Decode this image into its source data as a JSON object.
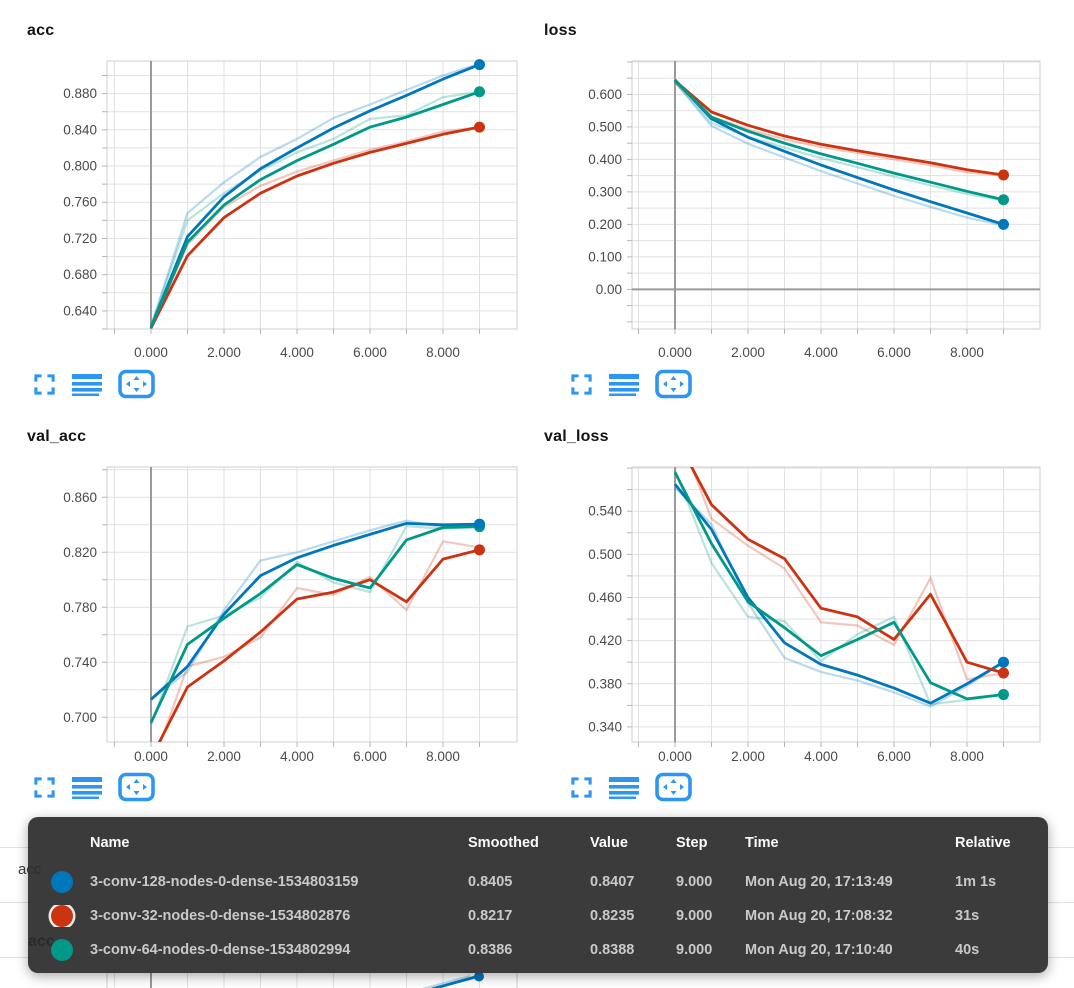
{
  "app": {
    "kind": "tensorboard-scalars-dashboard"
  },
  "colors": {
    "accent_icon_blue": "#2d96f3",
    "run_blue": "#0077bb",
    "run_red": "#cc3311",
    "run_teal": "#009988",
    "grid": "#e1e1e1",
    "plot_border": "#cfcfcf",
    "zero_axis": "#9a9a9a",
    "tick_text": "#4a4a4a",
    "tooltip_bg": "rgba(44,44,44,0.93)"
  },
  "runs": [
    {
      "name": "3-conv-128-nodes-0-dense-1534803159",
      "color": "#0077bb"
    },
    {
      "name": "3-conv-32-nodes-0-dense-1534802876",
      "color": "#cc3311"
    },
    {
      "name": "3-conv-64-nodes-0-dense-1534802994",
      "color": "#009988"
    }
  ],
  "toolbar_icons": [
    {
      "name": "expand-chart-icon"
    },
    {
      "name": "log-scale-icon"
    },
    {
      "name": "fit-domain-to-data-icon"
    }
  ],
  "chart_data": [
    {
      "type": "line",
      "title": "acc",
      "x": [
        0,
        1,
        2,
        3,
        4,
        5,
        6,
        7,
        8,
        9
      ],
      "xticks": [
        0,
        2,
        4,
        6,
        8
      ],
      "xtick_labels": [
        "0.000",
        "2.000",
        "4.000",
        "6.000",
        "8.000"
      ],
      "ylim": [
        0.62,
        0.916
      ],
      "yticks": [
        0.64,
        0.68,
        0.72,
        0.76,
        0.8,
        0.84,
        0.88
      ],
      "ytick_labels": [
        "0.640",
        "0.680",
        "0.720",
        "0.760",
        "0.800",
        "0.840",
        "0.880"
      ],
      "y_minor_step": 0.02,
      "grid": true,
      "legend": "none",
      "series": [
        {
          "run": 0,
          "smoothed": [
            0.622,
            0.722,
            0.766,
            0.797,
            0.82,
            0.842,
            0.861,
            0.878,
            0.896,
            0.912
          ],
          "raw": [
            0.623,
            0.748,
            0.782,
            0.81,
            0.83,
            0.853,
            0.868,
            0.884,
            0.9,
            0.913
          ]
        },
        {
          "run": 1,
          "smoothed": [
            0.621,
            0.701,
            0.743,
            0.77,
            0.789,
            0.803,
            0.815,
            0.825,
            0.835,
            0.843
          ],
          "raw": [
            0.622,
            0.713,
            0.755,
            0.778,
            0.794,
            0.806,
            0.818,
            0.827,
            0.838,
            0.843
          ]
        },
        {
          "run": 2,
          "smoothed": [
            0.622,
            0.716,
            0.757,
            0.785,
            0.806,
            0.824,
            0.843,
            0.854,
            0.868,
            0.882
          ],
          "raw": [
            0.623,
            0.74,
            0.77,
            0.795,
            0.815,
            0.83,
            0.852,
            0.856,
            0.876,
            0.882
          ]
        }
      ]
    },
    {
      "type": "line",
      "title": "loss",
      "x": [
        0,
        1,
        2,
        3,
        4,
        5,
        6,
        7,
        8,
        9
      ],
      "xticks": [
        0,
        2,
        4,
        6,
        8
      ],
      "xtick_labels": [
        "0.000",
        "2.000",
        "4.000",
        "6.000",
        "8.000"
      ],
      "ylim": [
        -0.122,
        0.703
      ],
      "yticks": [
        0.0,
        0.1,
        0.2,
        0.3,
        0.4,
        0.5,
        0.6
      ],
      "ytick_labels": [
        "0.00",
        "0.100",
        "0.200",
        "0.300",
        "0.400",
        "0.500",
        "0.600"
      ],
      "y_minor_step": 0.05,
      "grid": true,
      "legend": "none",
      "series": [
        {
          "run": 0,
          "smoothed": [
            0.645,
            0.525,
            0.468,
            0.425,
            0.383,
            0.344,
            0.306,
            0.27,
            0.235,
            0.2
          ],
          "raw": [
            0.638,
            0.503,
            0.448,
            0.406,
            0.364,
            0.326,
            0.288,
            0.254,
            0.221,
            0.197
          ]
        },
        {
          "run": 1,
          "smoothed": [
            0.642,
            0.546,
            0.505,
            0.472,
            0.447,
            0.427,
            0.408,
            0.39,
            0.368,
            0.352
          ],
          "raw": [
            0.637,
            0.532,
            0.492,
            0.462,
            0.438,
            0.42,
            0.4,
            0.382,
            0.36,
            0.35
          ]
        },
        {
          "run": 2,
          "smoothed": [
            0.643,
            0.53,
            0.487,
            0.45,
            0.417,
            0.388,
            0.358,
            0.33,
            0.302,
            0.276
          ],
          "raw": [
            0.638,
            0.512,
            0.47,
            0.436,
            0.404,
            0.376,
            0.347,
            0.32,
            0.294,
            0.273
          ]
        }
      ]
    },
    {
      "type": "line",
      "title": "val_acc",
      "x": [
        0,
        1,
        2,
        3,
        4,
        5,
        6,
        7,
        8,
        9
      ],
      "xticks": [
        0,
        2,
        4,
        6,
        8
      ],
      "xtick_labels": [
        "0.000",
        "2.000",
        "4.000",
        "6.000",
        "8.000"
      ],
      "ylim": [
        0.682,
        0.882
      ],
      "yticks": [
        0.7,
        0.74,
        0.78,
        0.82,
        0.86
      ],
      "ytick_labels": [
        "0.700",
        "0.740",
        "0.780",
        "0.820",
        "0.860"
      ],
      "y_minor_step": 0.02,
      "grid": true,
      "legend": "none",
      "series": [
        {
          "run": 0,
          "smoothed": [
            0.713,
            0.737,
            0.775,
            0.803,
            0.816,
            0.825,
            0.833,
            0.841,
            0.84,
            0.8405
          ],
          "raw": [
            0.713,
            0.733,
            0.778,
            0.814,
            0.82,
            0.828,
            0.836,
            0.843,
            0.838,
            0.8407
          ]
        },
        {
          "run": 1,
          "smoothed": [
            0.67,
            0.722,
            0.741,
            0.762,
            0.786,
            0.791,
            0.8,
            0.784,
            0.815,
            0.8217
          ],
          "raw": [
            0.662,
            0.737,
            0.744,
            0.758,
            0.794,
            0.789,
            0.802,
            0.778,
            0.828,
            0.8235
          ]
        },
        {
          "run": 2,
          "smoothed": [
            0.696,
            0.753,
            0.772,
            0.79,
            0.811,
            0.801,
            0.794,
            0.829,
            0.838,
            0.8386
          ],
          "raw": [
            0.695,
            0.766,
            0.774,
            0.787,
            0.813,
            0.798,
            0.791,
            0.839,
            0.837,
            0.8388
          ]
        }
      ]
    },
    {
      "type": "line",
      "title": "val_loss",
      "x": [
        0,
        1,
        2,
        3,
        4,
        5,
        6,
        7,
        8,
        9
      ],
      "xticks": [
        0,
        2,
        4,
        6,
        8
      ],
      "xtick_labels": [
        "0.000",
        "2.000",
        "4.000",
        "6.000",
        "8.000"
      ],
      "ylim": [
        0.326,
        0.581
      ],
      "yticks": [
        0.34,
        0.38,
        0.42,
        0.46,
        0.5,
        0.54
      ],
      "ytick_labels": [
        "0.340",
        "0.380",
        "0.420",
        "0.460",
        "0.500",
        "0.540"
      ],
      "y_minor_step": 0.02,
      "grid": true,
      "legend": "none",
      "series": [
        {
          "run": 0,
          "smoothed": [
            0.565,
            0.523,
            0.46,
            0.418,
            0.398,
            0.388,
            0.376,
            0.362,
            0.38,
            0.4
          ],
          "raw": [
            0.562,
            0.528,
            0.455,
            0.404,
            0.391,
            0.383,
            0.372,
            0.359,
            0.378,
            0.4
          ]
        },
        {
          "run": 1,
          "smoothed": [
            0.61,
            0.546,
            0.514,
            0.496,
            0.45,
            0.442,
            0.421,
            0.463,
            0.4,
            0.39
          ],
          "raw": [
            0.622,
            0.533,
            0.508,
            0.487,
            0.437,
            0.434,
            0.416,
            0.478,
            0.384,
            0.39
          ]
        },
        {
          "run": 2,
          "smoothed": [
            0.576,
            0.51,
            0.456,
            0.432,
            0.406,
            0.421,
            0.437,
            0.381,
            0.366,
            0.37
          ],
          "raw": [
            0.578,
            0.492,
            0.442,
            0.438,
            0.401,
            0.426,
            0.442,
            0.361,
            0.365,
            0.37
          ]
        }
      ]
    }
  ],
  "tooltip": {
    "headers": [
      "Name",
      "Smoothed",
      "Value",
      "Step",
      "Time",
      "Relative"
    ],
    "rows": [
      {
        "run": 0,
        "name": "3-conv-128-nodes-0-dense-1534803159",
        "smoothed": "0.8405",
        "value": "0.8407",
        "step": "9.000",
        "time": "Mon Aug 20, 17:13:49",
        "relative": "1m 1s",
        "highlighted": false
      },
      {
        "run": 1,
        "name": "3-conv-32-nodes-0-dense-1534802876",
        "smoothed": "0.8217",
        "value": "0.8235",
        "step": "9.000",
        "time": "Mon Aug 20, 17:08:32",
        "relative": "31s",
        "highlighted": true
      },
      {
        "run": 2,
        "name": "3-conv-64-nodes-0-dense-1534802994",
        "smoothed": "0.8386",
        "value": "0.8388",
        "step": "9.000",
        "time": "Mon Aug 20, 17:10:40",
        "relative": "40s",
        "highlighted": false
      }
    ]
  },
  "partials": {
    "section_label": "acc",
    "next_chart_title": "acc"
  }
}
